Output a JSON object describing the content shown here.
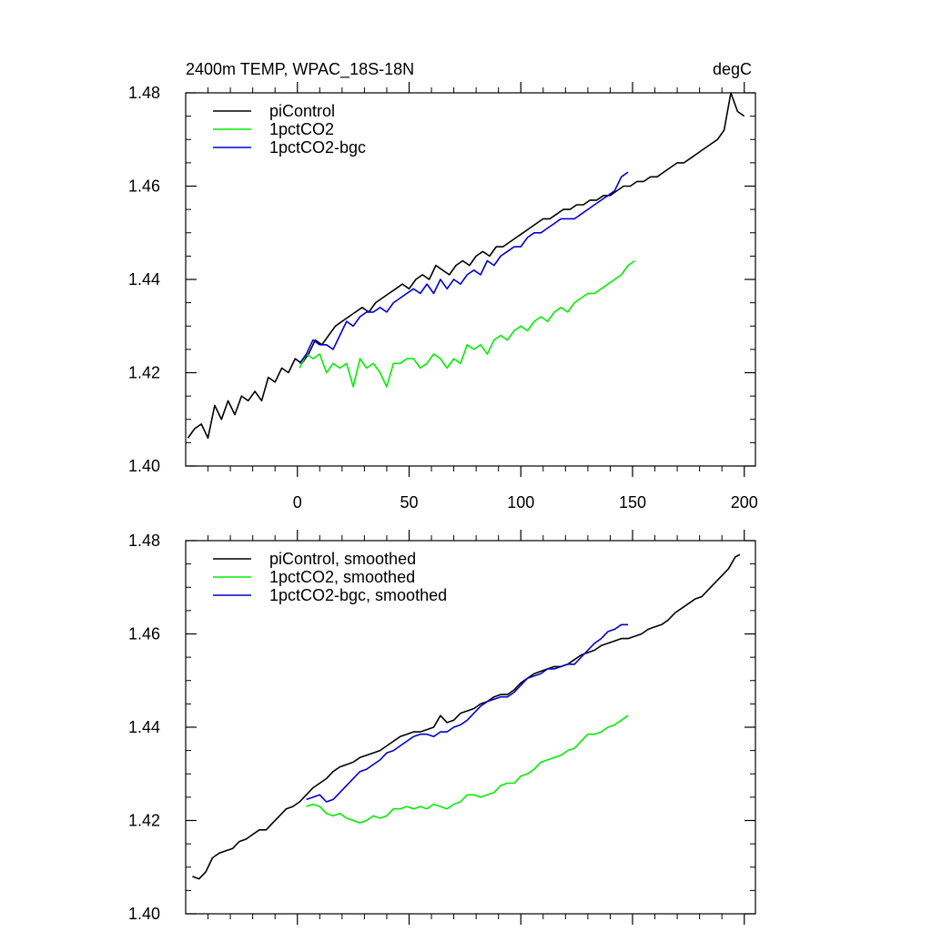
{
  "chart_data": [
    {
      "type": "line",
      "title": "2400m TEMP, WPAC_18S-18N",
      "units": "degC",
      "xlim": [
        -50,
        205
      ],
      "ylim": [
        1.4,
        1.48
      ],
      "xticks": [
        0,
        50,
        100,
        150,
        200
      ],
      "yticks": [
        "1.40",
        "1.42",
        "1.44",
        "1.46",
        "1.48"
      ],
      "legend_location": "top-left",
      "series": [
        {
          "name": "piControl",
          "color": "#000000",
          "x": [
            -49,
            -46,
            -43,
            -40,
            -37,
            -34,
            -31,
            -28,
            -25,
            -22,
            -19,
            -16,
            -13,
            -10,
            -7,
            -4,
            -1,
            2,
            5,
            8,
            11,
            14,
            17,
            20,
            23,
            26,
            29,
            32,
            35,
            38,
            41,
            44,
            47,
            50,
            53,
            56,
            59,
            62,
            65,
            68,
            71,
            74,
            77,
            80,
            83,
            86,
            89,
            92,
            95,
            98,
            101,
            104,
            107,
            110,
            113,
            116,
            119,
            122,
            125,
            128,
            131,
            134,
            137,
            140,
            143,
            146,
            149,
            152,
            155,
            158,
            161,
            164,
            167,
            170,
            173,
            176,
            179,
            182,
            185,
            188,
            191,
            194,
            197,
            200
          ],
          "values": [
            1.406,
            1.408,
            1.409,
            1.406,
            1.413,
            1.41,
            1.414,
            1.411,
            1.415,
            1.414,
            1.416,
            1.414,
            1.419,
            1.418,
            1.421,
            1.42,
            1.423,
            1.422,
            1.424,
            1.427,
            1.426,
            1.428,
            1.43,
            1.431,
            1.432,
            1.433,
            1.434,
            1.433,
            1.435,
            1.436,
            1.437,
            1.438,
            1.439,
            1.438,
            1.44,
            1.441,
            1.44,
            1.443,
            1.442,
            1.441,
            1.443,
            1.444,
            1.443,
            1.445,
            1.446,
            1.445,
            1.447,
            1.447,
            1.448,
            1.449,
            1.45,
            1.451,
            1.452,
            1.453,
            1.453,
            1.454,
            1.455,
            1.455,
            1.456,
            1.456,
            1.457,
            1.457,
            1.458,
            1.458,
            1.459,
            1.46,
            1.46,
            1.461,
            1.461,
            1.462,
            1.462,
            1.463,
            1.464,
            1.465,
            1.465,
            1.466,
            1.467,
            1.468,
            1.469,
            1.47,
            1.472,
            1.48,
            1.476,
            1.475
          ]
        },
        {
          "name": "1pctCO2",
          "color": "#00ee00",
          "x": [
            1,
            4,
            7,
            10,
            13,
            16,
            19,
            22,
            25,
            28,
            31,
            34,
            37,
            40,
            43,
            46,
            49,
            52,
            55,
            58,
            61,
            64,
            67,
            70,
            73,
            76,
            79,
            82,
            85,
            88,
            91,
            94,
            97,
            100,
            103,
            106,
            109,
            112,
            115,
            118,
            121,
            124,
            127,
            130,
            133,
            136,
            139,
            142,
            145,
            148,
            151
          ],
          "values": [
            1.421,
            1.424,
            1.423,
            1.424,
            1.42,
            1.422,
            1.421,
            1.422,
            1.417,
            1.423,
            1.421,
            1.422,
            1.42,
            1.417,
            1.422,
            1.422,
            1.423,
            1.423,
            1.421,
            1.422,
            1.424,
            1.423,
            1.421,
            1.423,
            1.422,
            1.426,
            1.425,
            1.426,
            1.424,
            1.427,
            1.428,
            1.427,
            1.429,
            1.43,
            1.429,
            1.431,
            1.432,
            1.431,
            1.433,
            1.434,
            1.433,
            1.435,
            1.436,
            1.437,
            1.437,
            1.438,
            1.439,
            1.44,
            1.441,
            1.443,
            1.444
          ]
        },
        {
          "name": "1pctCO2-bgc",
          "color": "#0000cc",
          "x": [
            1,
            4,
            7,
            10,
            13,
            16,
            19,
            22,
            25,
            28,
            31,
            34,
            37,
            40,
            43,
            46,
            49,
            52,
            55,
            58,
            61,
            64,
            67,
            70,
            73,
            76,
            79,
            82,
            85,
            88,
            91,
            94,
            97,
            100,
            103,
            106,
            109,
            112,
            115,
            118,
            121,
            124,
            127,
            130,
            133,
            136,
            139,
            142,
            145,
            148
          ],
          "values": [
            1.422,
            1.424,
            1.427,
            1.426,
            1.426,
            1.425,
            1.428,
            1.431,
            1.43,
            1.432,
            1.433,
            1.433,
            1.434,
            1.433,
            1.435,
            1.436,
            1.437,
            1.438,
            1.437,
            1.439,
            1.437,
            1.44,
            1.438,
            1.44,
            1.439,
            1.441,
            1.442,
            1.441,
            1.444,
            1.443,
            1.445,
            1.446,
            1.447,
            1.447,
            1.449,
            1.45,
            1.45,
            1.451,
            1.452,
            1.453,
            1.453,
            1.453,
            1.454,
            1.455,
            1.456,
            1.457,
            1.458,
            1.459,
            1.462,
            1.463
          ]
        }
      ]
    },
    {
      "type": "line",
      "title": "",
      "units": "",
      "xlim": [
        -50,
        205
      ],
      "ylim": [
        1.4,
        1.48
      ],
      "xticks": [],
      "yticks": [
        "1.40",
        "1.42",
        "1.44",
        "1.46",
        "1.48"
      ],
      "legend_location": "top-left",
      "series": [
        {
          "name": "piControl, smoothed",
          "color": "#000000",
          "x": [
            -47,
            -44,
            -41,
            -38,
            -35,
            -32,
            -29,
            -26,
            -23,
            -20,
            -17,
            -14,
            -11,
            -8,
            -5,
            -2,
            1,
            4,
            7,
            10,
            13,
            16,
            19,
            22,
            25,
            28,
            31,
            34,
            37,
            40,
            43,
            46,
            49,
            52,
            55,
            58,
            61,
            64,
            67,
            70,
            73,
            76,
            79,
            82,
            85,
            88,
            91,
            94,
            97,
            100,
            103,
            106,
            109,
            112,
            115,
            118,
            121,
            124,
            127,
            130,
            133,
            136,
            139,
            142,
            145,
            148,
            151,
            154,
            157,
            160,
            163,
            166,
            169,
            172,
            175,
            178,
            181,
            184,
            187,
            190,
            193,
            196,
            198
          ],
          "values": [
            1.408,
            1.4075,
            1.409,
            1.412,
            1.413,
            1.4135,
            1.414,
            1.4155,
            1.416,
            1.417,
            1.418,
            1.418,
            1.4195,
            1.421,
            1.4225,
            1.423,
            1.424,
            1.4255,
            1.427,
            1.428,
            1.429,
            1.4305,
            1.4315,
            1.432,
            1.4325,
            1.4335,
            1.434,
            1.4345,
            1.435,
            1.436,
            1.437,
            1.438,
            1.4385,
            1.439,
            1.439,
            1.4395,
            1.44,
            1.4425,
            1.441,
            1.4415,
            1.443,
            1.4435,
            1.444,
            1.445,
            1.4455,
            1.4465,
            1.447,
            1.447,
            1.448,
            1.4495,
            1.4505,
            1.4515,
            1.452,
            1.4525,
            1.453,
            1.453,
            1.4535,
            1.4545,
            1.4555,
            1.456,
            1.4565,
            1.4575,
            1.458,
            1.4585,
            1.459,
            1.459,
            1.4595,
            1.46,
            1.461,
            1.4615,
            1.462,
            1.463,
            1.4645,
            1.4655,
            1.4665,
            1.4675,
            1.468,
            1.4695,
            1.471,
            1.4725,
            1.474,
            1.4765,
            1.477
          ]
        },
        {
          "name": "1pctCO2, smoothed",
          "color": "#00ee00",
          "x": [
            4,
            7,
            10,
            13,
            16,
            19,
            22,
            25,
            28,
            31,
            34,
            37,
            40,
            43,
            46,
            49,
            52,
            55,
            58,
            61,
            64,
            67,
            70,
            73,
            76,
            79,
            82,
            85,
            88,
            91,
            94,
            97,
            100,
            103,
            106,
            109,
            112,
            115,
            118,
            121,
            124,
            127,
            130,
            133,
            136,
            139,
            142,
            145,
            148
          ],
          "values": [
            1.423,
            1.4235,
            1.423,
            1.4215,
            1.421,
            1.4215,
            1.4205,
            1.42,
            1.4195,
            1.42,
            1.421,
            1.4205,
            1.421,
            1.4225,
            1.4225,
            1.423,
            1.4225,
            1.423,
            1.4225,
            1.4235,
            1.423,
            1.4225,
            1.4235,
            1.424,
            1.4255,
            1.4255,
            1.425,
            1.4255,
            1.426,
            1.4275,
            1.428,
            1.428,
            1.4295,
            1.43,
            1.431,
            1.4325,
            1.433,
            1.4335,
            1.434,
            1.435,
            1.4355,
            1.437,
            1.4385,
            1.4385,
            1.439,
            1.44,
            1.4405,
            1.4415,
            1.4425
          ]
        },
        {
          "name": "1pctCO2-bgc, smoothed",
          "color": "#0000cc",
          "x": [
            4,
            7,
            10,
            13,
            16,
            19,
            22,
            25,
            28,
            31,
            34,
            37,
            40,
            43,
            46,
            49,
            52,
            55,
            58,
            61,
            64,
            67,
            70,
            73,
            76,
            79,
            82,
            85,
            88,
            91,
            94,
            97,
            100,
            103,
            106,
            109,
            112,
            115,
            118,
            121,
            124,
            127,
            130,
            133,
            136,
            139,
            142,
            145,
            148
          ],
          "values": [
            1.4245,
            1.425,
            1.4255,
            1.424,
            1.4245,
            1.426,
            1.4275,
            1.429,
            1.4305,
            1.431,
            1.432,
            1.433,
            1.4345,
            1.435,
            1.436,
            1.437,
            1.438,
            1.4385,
            1.4385,
            1.438,
            1.439,
            1.439,
            1.44,
            1.4405,
            1.4415,
            1.443,
            1.4445,
            1.4455,
            1.446,
            1.4465,
            1.4465,
            1.4475,
            1.449,
            1.4505,
            1.451,
            1.4515,
            1.4525,
            1.4525,
            1.453,
            1.4535,
            1.4535,
            1.455,
            1.4565,
            1.458,
            1.459,
            1.4605,
            1.461,
            1.462,
            1.462
          ]
        }
      ]
    }
  ]
}
